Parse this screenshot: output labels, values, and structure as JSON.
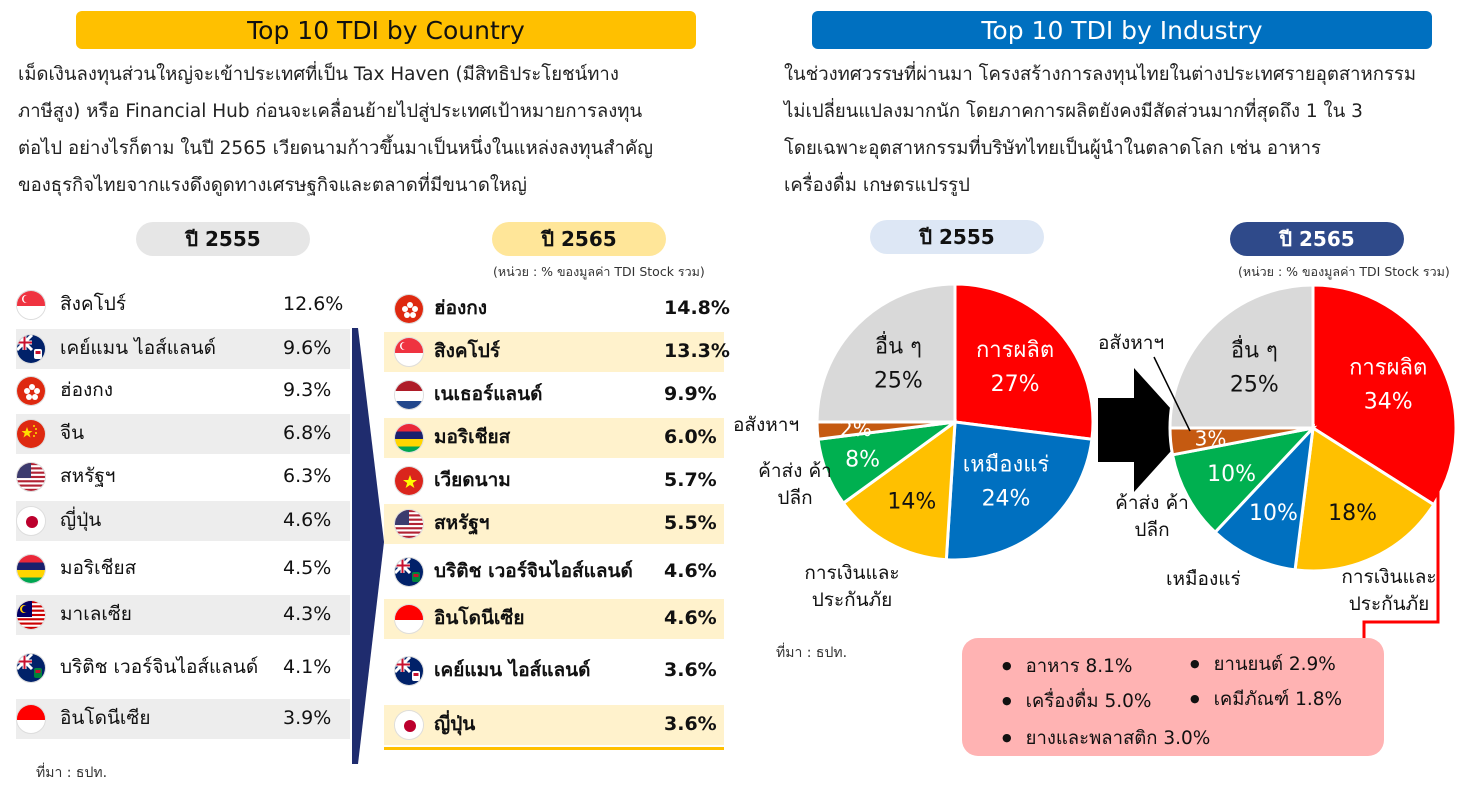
{
  "left_section": {
    "title": "Top 10 TDI by Country",
    "paragraph": [
      "เม็ดเงินลงทุนส่วนใหญ่จะเข้าประเทศที่เป็น Tax Haven (มีสิทธิประโยชน์ทาง",
      "ภาษีสูง) หรือ Financial Hub ก่อนจะเคลื่อนย้ายไปสู่ประเทศเป้าหมายการลงทุน",
      "ต่อไป อย่างไรก็ตาม ในปี 2565 เวียดนามก้าวขึ้นมาเป็นหนึ่งในแหล่งลงทุนสำคัญ",
      "ของธุรกิจไทยจากแรงดึงดูดทางเศรษฐกิจและตลาดที่มีขนาดใหญ่"
    ],
    "year_2555_label": "ปี 2555",
    "year_2565_label": "ปี 2565",
    "unit_note": "(หน่วย : % ของมูลค่า TDI Stock รวม)",
    "source": "ที่มา : ธปท."
  },
  "right_section": {
    "title": "Top 10 TDI by Industry",
    "paragraph": [
      "ในช่วงทศวรรษที่ผ่านมา โครงสร้างการลงทุนไทยในต่างประเทศรายอุตสาหกรรม",
      "ไม่เปลี่ยนแปลงมากนัก โดยภาคการผลิตยังคงมีสัดส่วนมากที่สุดถึง 1 ใน 3",
      "โดยเฉพาะอุตสาหกรรมที่บริษัทไทยเป็นผู้นำในตลาดโลก เช่น อาหาร",
      "เครื่องดื่ม เกษตรแปรรูป"
    ],
    "year_2555_label": "ปี 2555",
    "year_2565_label": "ปี 2565",
    "unit_note": "(หน่วย : % ของมูลค่า TDI Stock รวม)",
    "source": "ที่มา : ธปท.",
    "manufacturing_breakdown": [
      "อาหาร 8.1%",
      "ยานยนต์ 2.9%",
      "เครื่องดื่ม 5.0%",
      "เคมีภัณฑ์ 1.8%",
      "ยางและพลาสติก 3.0%"
    ]
  },
  "chart_data": [
    {
      "type": "table",
      "title": "ปี 2555",
      "rows": [
        {
          "country": "สิงคโปร์",
          "value": "12.6%",
          "flag": "singapore-flag"
        },
        {
          "country": "เคย์แมน ไอส์แลนด์",
          "value": "9.6%",
          "flag": "cayman-islands-flag"
        },
        {
          "country": "ฮ่องกง",
          "value": "9.3%",
          "flag": "hong-kong-flag"
        },
        {
          "country": "จีน",
          "value": "6.8%",
          "flag": "china-flag"
        },
        {
          "country": "สหรัฐฯ",
          "value": "6.3%",
          "flag": "usa-flag"
        },
        {
          "country": "ญี่ปุ่น",
          "value": "4.6%",
          "flag": "japan-flag"
        },
        {
          "country": "มอริเชียส",
          "value": "4.5%",
          "flag": "mauritius-flag"
        },
        {
          "country": "มาเลเซีย",
          "value": "4.3%",
          "flag": "malaysia-flag"
        },
        {
          "country": "บริติช เวอร์จินไอส์แลนด์",
          "value": "4.1%",
          "flag": "british-virgin-islands-flag"
        },
        {
          "country": "อินโดนีเซีย",
          "value": "3.9%",
          "flag": "indonesia-flag"
        }
      ]
    },
    {
      "type": "table",
      "title": "ปี 2565",
      "rows": [
        {
          "country": "ฮ่องกง",
          "value": "14.8%",
          "flag": "hong-kong-flag"
        },
        {
          "country": "สิงคโปร์",
          "value": "13.3%",
          "flag": "singapore-flag"
        },
        {
          "country": "เนเธอร์แลนด์",
          "value": "9.9%",
          "flag": "netherlands-flag"
        },
        {
          "country": "มอริเชียส",
          "value": "6.0%",
          "flag": "mauritius-flag"
        },
        {
          "country": "เวียดนาม",
          "value": "5.7%",
          "flag": "vietnam-flag"
        },
        {
          "country": "สหรัฐฯ",
          "value": "5.5%",
          "flag": "usa-flag"
        },
        {
          "country": "บริติช เวอร์จินไอส์แลนด์",
          "value": "4.6%",
          "flag": "british-virgin-islands-flag"
        },
        {
          "country": "อินโดนีเซีย",
          "value": "4.6%",
          "flag": "indonesia-flag"
        },
        {
          "country": "เคย์แมน ไอส์แลนด์",
          "value": "3.6%",
          "flag": "cayman-islands-flag"
        },
        {
          "country": "ญี่ปุ่น",
          "value": "3.6%",
          "flag": "japan-flag"
        }
      ]
    },
    {
      "type": "pie",
      "title": "ปี 2555",
      "slices": [
        {
          "label": "การผลิต",
          "value": 27,
          "color": "#FF0000",
          "text_color": "#ffffff"
        },
        {
          "label": "เหมืองแร่",
          "value": 24,
          "color": "#0070C0",
          "text_color": "#ffffff"
        },
        {
          "label": "การเงินและประกันภัย",
          "value": 14,
          "color": "#FFC000",
          "text_color": "#111111"
        },
        {
          "label": "ค้าส่งค้าปลีก",
          "value": 8,
          "color": "#00B050",
          "text_color": "#ffffff"
        },
        {
          "label": "อสังหาฯ",
          "value": 2,
          "color": "#C55A11",
          "text_color": "#ffffff"
        },
        {
          "label": "อื่น ๆ",
          "value": 25,
          "color": "#D9D9D9",
          "text_color": "#111111"
        }
      ],
      "labels_outside": [
        "อสังหาฯ",
        "ค้าส่ง ค้าปลีก",
        "การเงินและ ประกันภัย"
      ],
      "value_labels": [
        "27%",
        "24%",
        "14%",
        "8%",
        "2%",
        "25%"
      ]
    },
    {
      "type": "pie",
      "title": "ปี 2565",
      "slices": [
        {
          "label": "การผลิต",
          "value": 34,
          "color": "#FF0000",
          "text_color": "#ffffff"
        },
        {
          "label": "การเงินและประกันภัย",
          "value": 18,
          "color": "#FFC000",
          "text_color": "#111111"
        },
        {
          "label": "เหมืองแร่",
          "value": 10,
          "color": "#0070C0",
          "text_color": "#ffffff"
        },
        {
          "label": "ค้าส่งค้าปลีก",
          "value": 10,
          "color": "#00B050",
          "text_color": "#ffffff"
        },
        {
          "label": "อสังหาฯ",
          "value": 3,
          "color": "#C55A11",
          "text_color": "#ffffff"
        },
        {
          "label": "อื่น ๆ",
          "value": 25,
          "color": "#D9D9D9",
          "text_color": "#111111"
        }
      ],
      "labels_outside": [
        "อสังหาฯ",
        "ค้าส่ง ค้าปลีก",
        "เหมืองแร่",
        "การเงินและ ประกันภัย"
      ],
      "value_labels": [
        "34%",
        "18%",
        "10%",
        "10%",
        "3%",
        "25%"
      ]
    }
  ]
}
